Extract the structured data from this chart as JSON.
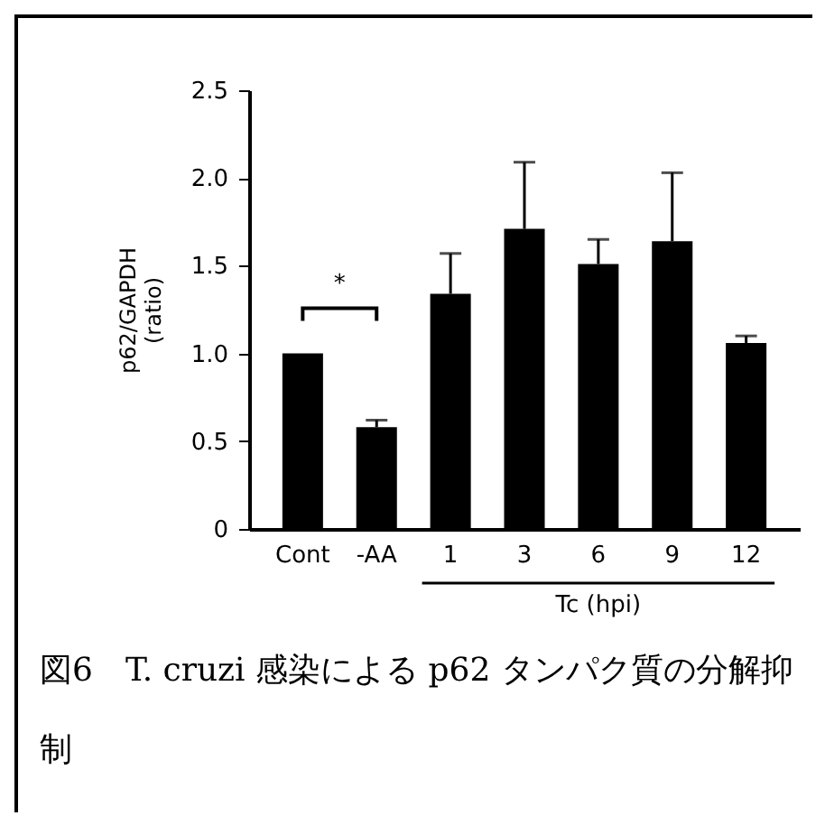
{
  "chart_data": {
    "type": "bar",
    "categories": [
      "Cont",
      "-AA",
      "1",
      "3",
      "6",
      "9",
      "12"
    ],
    "values": [
      1.0,
      0.58,
      1.34,
      1.71,
      1.51,
      1.64,
      1.06
    ],
    "errors": [
      null,
      [
        0.58,
        0.62
      ],
      [
        1.34,
        1.57
      ],
      [
        1.71,
        2.09
      ],
      [
        1.51,
        1.65
      ],
      [
        1.64,
        2.03
      ],
      [
        1.06,
        1.1
      ]
    ],
    "color": "#000000",
    "ylabel": "p62/GAPDH\n(ratio)",
    "xlabel": "Tc (hpi)",
    "ylim": [
      0,
      2.5
    ],
    "yticks": [
      0,
      0.5,
      {
        "value": 1,
        "label": "1.0"
      },
      1.5,
      {
        "value": 2,
        "label": "2.0"
      },
      2.5
    ],
    "grid": false,
    "annotations": [
      "*",
      "図6　T. cruzi 感染による p62 タンパク質の分解抑制"
    ]
  }
}
